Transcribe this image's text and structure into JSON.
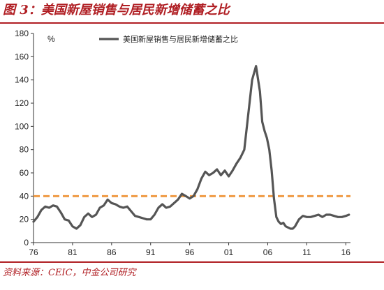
{
  "figure_title": "图 3：美国新屋销售与居民新增储蓄之比",
  "source": "资料来源：CEIC，中金公司研究",
  "chart_data": {
    "type": "line",
    "title": "",
    "unit_label": "%",
    "ylim": [
      0,
      180
    ],
    "yticks": [
      0,
      20,
      40,
      60,
      80,
      100,
      120,
      140,
      160,
      180
    ],
    "xlim": [
      1976,
      2016.6
    ],
    "xticks": [
      1976,
      1981,
      1986,
      1991,
      1996,
      2001,
      2006,
      2011,
      2016
    ],
    "xtick_labels": [
      "76",
      "81",
      "86",
      "91",
      "96",
      "01",
      "06",
      "11",
      "16"
    ],
    "legend_position": "top",
    "series": [
      {
        "name": "美国新屋销售与居民新增储蓄之比",
        "color": "#555555",
        "x": [
          1976.0,
          1976.5,
          1977.0,
          1977.5,
          1978.0,
          1978.5,
          1979.0,
          1979.5,
          1980.0,
          1980.5,
          1981.0,
          1981.5,
          1982.0,
          1982.5,
          1983.0,
          1983.5,
          1984.0,
          1984.5,
          1985.0,
          1985.5,
          1986.0,
          1986.5,
          1987.0,
          1987.5,
          1988.0,
          1988.5,
          1989.0,
          1989.5,
          1990.0,
          1990.5,
          1991.0,
          1991.5,
          1992.0,
          1992.5,
          1993.0,
          1993.5,
          1994.0,
          1994.5,
          1995.0,
          1995.5,
          1996.0,
          1996.5,
          1997.0,
          1997.5,
          1998.0,
          1998.5,
          1999.0,
          1999.5,
          2000.0,
          2000.5,
          2001.0,
          2001.5,
          2002.0,
          2002.5,
          2003.0,
          2003.5,
          2004.0,
          2004.5,
          2005.0,
          2005.3,
          2005.6,
          2005.9,
          2006.2,
          2006.5,
          2006.8,
          2007.1,
          2007.4,
          2007.7,
          2008.0,
          2008.3,
          2008.6,
          2008.9,
          2009.2,
          2009.5,
          2010.0,
          2010.5,
          2011.0,
          2011.5,
          2012.0,
          2012.5,
          2013.0,
          2013.5,
          2014.0,
          2014.5,
          2015.0,
          2015.5,
          2016.0,
          2016.4
        ],
        "values": [
          18,
          22,
          28,
          31,
          30,
          32,
          31,
          26,
          20,
          19,
          14,
          12,
          15,
          22,
          25,
          22,
          24,
          30,
          32,
          37,
          34,
          33,
          31,
          30,
          31,
          27,
          23,
          22,
          21,
          20,
          20,
          24,
          30,
          33,
          30,
          31,
          34,
          37,
          42,
          40,
          38,
          40,
          46,
          55,
          61,
          58,
          60,
          63,
          58,
          62,
          57,
          62,
          68,
          73,
          80,
          110,
          140,
          152,
          130,
          104,
          96,
          90,
          80,
          62,
          38,
          22,
          18,
          16,
          17,
          14,
          13,
          12,
          12,
          14,
          20,
          23,
          22,
          22,
          23,
          24,
          22,
          24,
          24,
          23,
          22,
          22,
          23,
          24
        ]
      }
    ],
    "reference_lines": [
      {
        "value": 40,
        "color": "#ef9a43",
        "style": "dashed"
      }
    ]
  }
}
